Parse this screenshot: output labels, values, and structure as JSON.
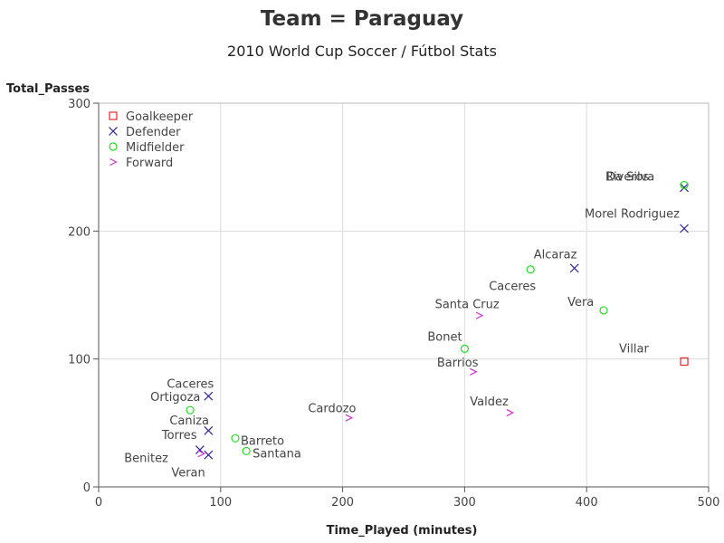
{
  "title": "Team = Paraguay",
  "subtitle": "2010 World Cup Soccer / Fútbol Stats",
  "chart_data": {
    "type": "scatter",
    "xlabel": "Time_Played (minutes)",
    "ylabel": "Total_Passes",
    "xlim": [
      0,
      500
    ],
    "ylim": [
      0,
      300
    ],
    "xticks": [
      0,
      100,
      200,
      300,
      400,
      500
    ],
    "yticks": [
      0,
      100,
      200,
      300
    ],
    "grid": true,
    "legend_position": "top-left",
    "positions": [
      {
        "name": "Goalkeeper",
        "marker": "square",
        "color": "#e3262a"
      },
      {
        "name": "Defender",
        "marker": "x",
        "color": "#33258c"
      },
      {
        "name": "Midfielder",
        "marker": "circle",
        "color": "#22dd22"
      },
      {
        "name": "Forward",
        "marker": "gt",
        "color": "#cc33cc"
      }
    ],
    "points": [
      {
        "label": "Villar",
        "position": "Goalkeeper",
        "x": 480,
        "y": 98
      },
      {
        "label": "Da Silva",
        "position": "Defender",
        "x": 480,
        "y": 234
      },
      {
        "label": "Morel Rodriguez",
        "position": "Defender",
        "x": 480,
        "y": 202
      },
      {
        "label": "Alcaraz",
        "position": "Defender",
        "x": 390,
        "y": 171
      },
      {
        "label": "Caceres",
        "position": "Defender",
        "x": 90,
        "y": 71
      },
      {
        "label": "Caniza",
        "position": "Defender",
        "x": 90,
        "y": 44
      },
      {
        "label": "Torres",
        "position": "Defender",
        "x": 83,
        "y": 29
      },
      {
        "label": "Veran",
        "position": "Defender",
        "x": 90,
        "y": 25
      },
      {
        "label": "Riveros",
        "position": "Midfielder",
        "x": 480,
        "y": 236
      },
      {
        "label": "Caceres",
        "position": "Midfielder",
        "x": 354,
        "y": 170
      },
      {
        "label": "Vera",
        "position": "Midfielder",
        "x": 414,
        "y": 138
      },
      {
        "label": "Bonet",
        "position": "Midfielder",
        "x": 300,
        "y": 108
      },
      {
        "label": "Ortigoza",
        "position": "Midfielder",
        "x": 75,
        "y": 60
      },
      {
        "label": "Barreto",
        "position": "Midfielder",
        "x": 112,
        "y": 38
      },
      {
        "label": "Santana",
        "position": "Midfielder",
        "x": 121,
        "y": 28
      },
      {
        "label": "Santa Cruz",
        "position": "Forward",
        "x": 312,
        "y": 134
      },
      {
        "label": "Barrios",
        "position": "Forward",
        "x": 307,
        "y": 90
      },
      {
        "label": "Cardozo",
        "position": "Forward",
        "x": 205,
        "y": 54
      },
      {
        "label": "Valdez",
        "position": "Forward",
        "x": 337,
        "y": 58
      },
      {
        "label": "Benitez",
        "position": "Forward",
        "x": 84,
        "y": 26
      }
    ]
  }
}
